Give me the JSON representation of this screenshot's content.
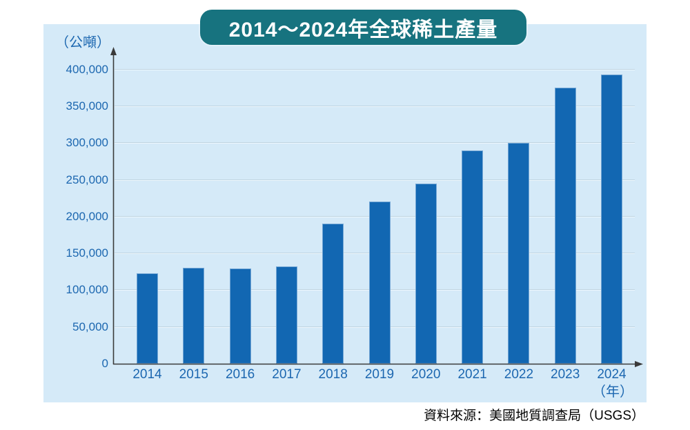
{
  "header": {
    "title": "2014～2024年全球稀土產量",
    "bg_color": "#17737f",
    "text_color": "#ffffff"
  },
  "panel": {
    "bg_color": "#d5eaf8"
  },
  "axes": {
    "y_unit_label": "（公噸）",
    "x_unit_label": "（年）",
    "y_ticks": [
      "0",
      "50,000",
      "100,000",
      "150,000",
      "200,000",
      "250,000",
      "300,000",
      "350,000",
      "400,000"
    ]
  },
  "source": {
    "text": "資料來源：美國地質調查局（USGS）"
  },
  "chart_data": {
    "type": "bar",
    "title": "2014～2024年全球稀土產量",
    "categories": [
      "2014",
      "2015",
      "2016",
      "2017",
      "2018",
      "2019",
      "2020",
      "2021",
      "2022",
      "2023",
      "2024"
    ],
    "values": [
      123000,
      130000,
      129000,
      132000,
      190000,
      220000,
      245000,
      290000,
      300000,
      375000,
      393000
    ],
    "xlabel": "年",
    "ylabel": "公噸",
    "ylim": [
      0,
      400000
    ],
    "ytick_step": 50000,
    "grid": true,
    "legend": false,
    "bar_color": "#1267b2",
    "label_color": "#1c67b0",
    "source": "美國地質調查局（USGS）"
  }
}
